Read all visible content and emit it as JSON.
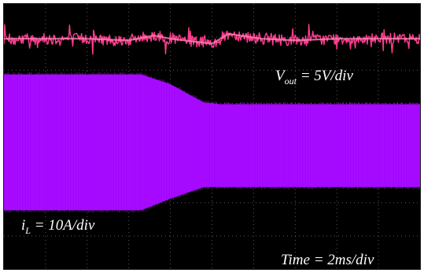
{
  "chart_data": {
    "type": "line",
    "title": "",
    "grid": true,
    "divisions": {
      "x": 10,
      "y": 8
    },
    "timebase": "Time = 2ms/div",
    "series": [
      {
        "name": "V_out",
        "scale_label": {
          "symbol": "V",
          "subscript": "out",
          "rest": " = 5V/div"
        },
        "color": "#ff3d8f",
        "description_level_div": [
          [
            0.0,
            6.95
          ],
          [
            2.0,
            6.95
          ],
          [
            3.0,
            6.9
          ],
          [
            3.6,
            7.05
          ],
          [
            4.0,
            6.95
          ],
          [
            5.0,
            6.8
          ],
          [
            5.4,
            7.1
          ],
          [
            6.2,
            6.95
          ],
          [
            7.0,
            6.9
          ],
          [
            8.0,
            6.95
          ],
          [
            10.0,
            6.95
          ]
        ],
        "noise_div": 0.35
      },
      {
        "name": "i_L",
        "scale_label": {
          "symbol": "i",
          "subscript": "L",
          "rest": " = 10A/div"
        },
        "color": "#a000ff",
        "envelope_upper_div": [
          [
            0.0,
            5.85
          ],
          [
            3.3,
            5.85
          ],
          [
            4.0,
            5.55
          ],
          [
            4.8,
            5.0
          ],
          [
            5.2,
            4.95
          ],
          [
            10.0,
            4.95
          ]
        ],
        "envelope_lower_div": [
          [
            0.0,
            1.8
          ],
          [
            3.3,
            1.8
          ],
          [
            4.0,
            2.15
          ],
          [
            4.8,
            2.5
          ],
          [
            5.2,
            2.5
          ],
          [
            10.0,
            2.5
          ]
        ]
      }
    ]
  },
  "labels": {
    "vout": {
      "symbol": "V",
      "sub": "out",
      "rest": " = 5V/div"
    },
    "il": {
      "symbol": "i",
      "sub": "L",
      "rest": " = 10A/div"
    },
    "time": "Time = 2ms/div"
  }
}
